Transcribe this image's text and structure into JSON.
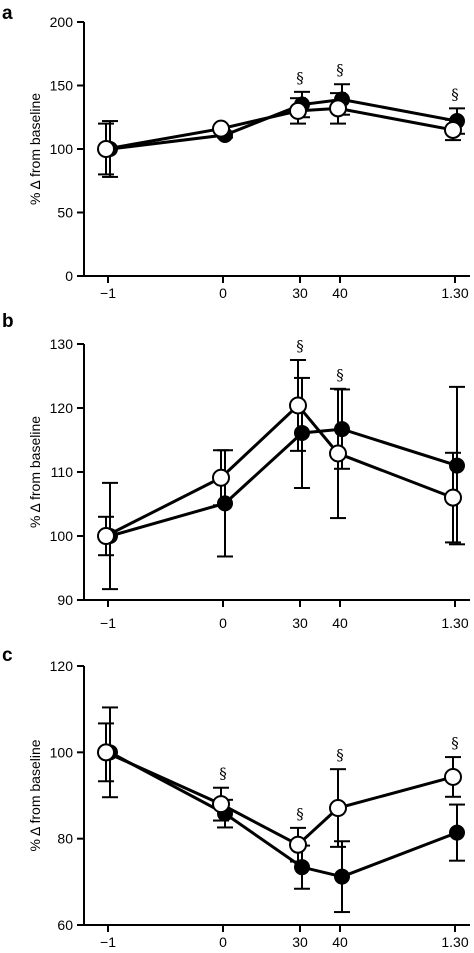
{
  "chart_data": [
    {
      "type": "line",
      "panel_letter": "a",
      "x": [
        "−1",
        "0",
        "30",
        "40",
        "1.30"
      ],
      "ylabel": "% Δ from baseline",
      "ylim": [
        0,
        200
      ],
      "yticks": [
        0,
        50,
        100,
        150,
        200
      ],
      "grid": false,
      "legend": "none",
      "series": [
        {
          "marker": "filled-circle",
          "values": [
            100,
            111,
            135,
            139,
            122
          ],
          "errors": [
            22,
            2,
            10,
            12,
            10
          ]
        },
        {
          "marker": "open-circle",
          "values": [
            100,
            116,
            130,
            132,
            115
          ],
          "errors": [
            20,
            2,
            10,
            12,
            8
          ]
        }
      ],
      "annotations": [
        {
          "x": "30",
          "text": "§"
        },
        {
          "x": "40",
          "text": "§"
        },
        {
          "x": "1.30",
          "text": "§"
        }
      ]
    },
    {
      "type": "line",
      "panel_letter": "b",
      "x": [
        "−1",
        "0",
        "30",
        "40",
        "1.30"
      ],
      "ylabel": "% Δ from baseline",
      "ylim": [
        90,
        130
      ],
      "yticks": [
        90,
        100,
        110,
        120,
        130
      ],
      "grid": false,
      "legend": "none",
      "series": [
        {
          "marker": "filled-circle",
          "values": [
            100,
            105.1,
            116.1,
            116.7,
            111.0
          ],
          "errors": [
            8.3,
            8.3,
            8.6,
            6.2,
            12.3
          ]
        },
        {
          "marker": "open-circle",
          "values": [
            100,
            109.1,
            120.4,
            112.9,
            106.0
          ],
          "errors": [
            3.0,
            4.3,
            7.1,
            10.1,
            7.0
          ]
        }
      ],
      "annotations": [
        {
          "x": "30",
          "text": "§"
        },
        {
          "x": "40",
          "text": "§"
        }
      ]
    },
    {
      "type": "line",
      "panel_letter": "c",
      "x": [
        "−1",
        "0",
        "30",
        "40",
        "1.30"
      ],
      "ylabel": "% Δ from baseline",
      "ylim": [
        60,
        120
      ],
      "yticks": [
        60,
        80,
        100,
        120
      ],
      "grid": false,
      "legend": "none",
      "series": [
        {
          "marker": "filled-circle",
          "values": [
            100,
            85.8,
            73.4,
            71.2,
            81.4
          ],
          "errors": [
            10.4,
            3.2,
            5.0,
            8.2,
            6.5
          ]
        },
        {
          "marker": "open-circle",
          "values": [
            100,
            88.0,
            78.6,
            87.1,
            94.3
          ],
          "errors": [
            6.7,
            3.8,
            3.9,
            9.0,
            4.6
          ]
        }
      ],
      "annotations": [
        {
          "x": "0",
          "text": "§"
        },
        {
          "x": "30",
          "text": "§"
        },
        {
          "x": "40",
          "text": "§"
        },
        {
          "x": "1.30",
          "text": "§"
        }
      ]
    }
  ]
}
